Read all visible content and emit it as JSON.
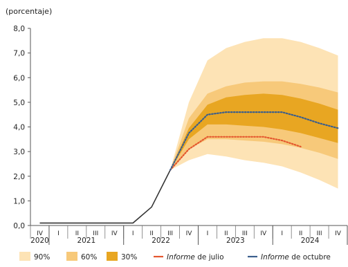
{
  "chart_data": {
    "type": "area",
    "ylabel": "(porcentaje)",
    "ylim": [
      0,
      8
    ],
    "yticks": [
      "0,0",
      "1,0",
      "2,0",
      "3,0",
      "4,0",
      "5,0",
      "6,0",
      "7,0",
      "8,0"
    ],
    "ytick_values": [
      0,
      1,
      2,
      3,
      4,
      5,
      6,
      7,
      8
    ],
    "grid": false,
    "quarters": [
      "IV",
      "I",
      "II",
      "III",
      "IV",
      "I",
      "II",
      "III",
      "IV",
      "I",
      "II",
      "III",
      "IV",
      "I",
      "II",
      "III",
      "IV"
    ],
    "years": [
      {
        "label": "2020",
        "from": 0,
        "to": 0
      },
      {
        "label": "2021",
        "from": 1,
        "to": 4
      },
      {
        "label": "2022",
        "from": 5,
        "to": 8
      },
      {
        "label": "2023",
        "from": 9,
        "to": 12
      },
      {
        "label": "2024",
        "from": 13,
        "to": 16
      }
    ],
    "history": {
      "x": [
        0,
        1,
        2,
        3,
        4,
        5,
        6,
        7
      ],
      "values": [
        0.1,
        0.1,
        0.1,
        0.1,
        0.1,
        0.1,
        0.75,
        2.25
      ]
    },
    "fan_x": [
      7,
      8,
      9,
      10,
      11,
      12,
      13,
      14,
      15,
      16
    ],
    "bands": [
      {
        "name": "90%",
        "color": "#fde3b5",
        "upper": [
          2.25,
          5.0,
          6.7,
          7.2,
          7.45,
          7.6,
          7.6,
          7.45,
          7.2,
          6.9
        ],
        "lower": [
          2.25,
          2.65,
          2.9,
          2.8,
          2.65,
          2.55,
          2.4,
          2.15,
          1.85,
          1.5
        ]
      },
      {
        "name": "60%",
        "color": "#f7c97a",
        "upper": [
          2.25,
          4.35,
          5.35,
          5.65,
          5.8,
          5.85,
          5.85,
          5.75,
          5.6,
          5.4
        ],
        "lower": [
          2.25,
          3.1,
          3.5,
          3.5,
          3.45,
          3.4,
          3.3,
          3.15,
          2.95,
          2.7
        ]
      },
      {
        "name": "30%",
        "color": "#e8a622",
        "upper": [
          2.25,
          3.95,
          4.9,
          5.2,
          5.3,
          5.35,
          5.3,
          5.15,
          4.95,
          4.7
        ],
        "lower": [
          2.25,
          3.5,
          4.1,
          4.1,
          4.05,
          4.0,
          3.9,
          3.75,
          3.55,
          3.35
        ]
      }
    ],
    "series": [
      {
        "name": "Informe de julio",
        "color": "#e4572e",
        "x": [
          7,
          8,
          9,
          10,
          11,
          12,
          13,
          14
        ],
        "values": [
          2.25,
          3.1,
          3.6,
          3.6,
          3.6,
          3.6,
          3.45,
          3.2
        ]
      },
      {
        "name": "Informe de octubre",
        "color": "#3b5e8c",
        "x": [
          7,
          8,
          9,
          10,
          11,
          12,
          13,
          14,
          15,
          16
        ],
        "values": [
          2.25,
          3.75,
          4.5,
          4.6,
          4.6,
          4.6,
          4.6,
          4.4,
          4.15,
          3.95
        ]
      }
    ],
    "legend": {
      "placement": "bottom",
      "items": [
        {
          "label": "90%",
          "color": "#fde3b5",
          "kind": "box"
        },
        {
          "label": "60%",
          "color": "#f7c97a",
          "kind": "box"
        },
        {
          "label": "30%",
          "color": "#e8a622",
          "kind": "box"
        },
        {
          "italic": "Informe",
          "rest": " de julio",
          "color": "#e4572e",
          "kind": "line"
        },
        {
          "italic": "Informe",
          "rest": " de octubre",
          "color": "#3b5e8c",
          "kind": "line"
        }
      ]
    }
  }
}
